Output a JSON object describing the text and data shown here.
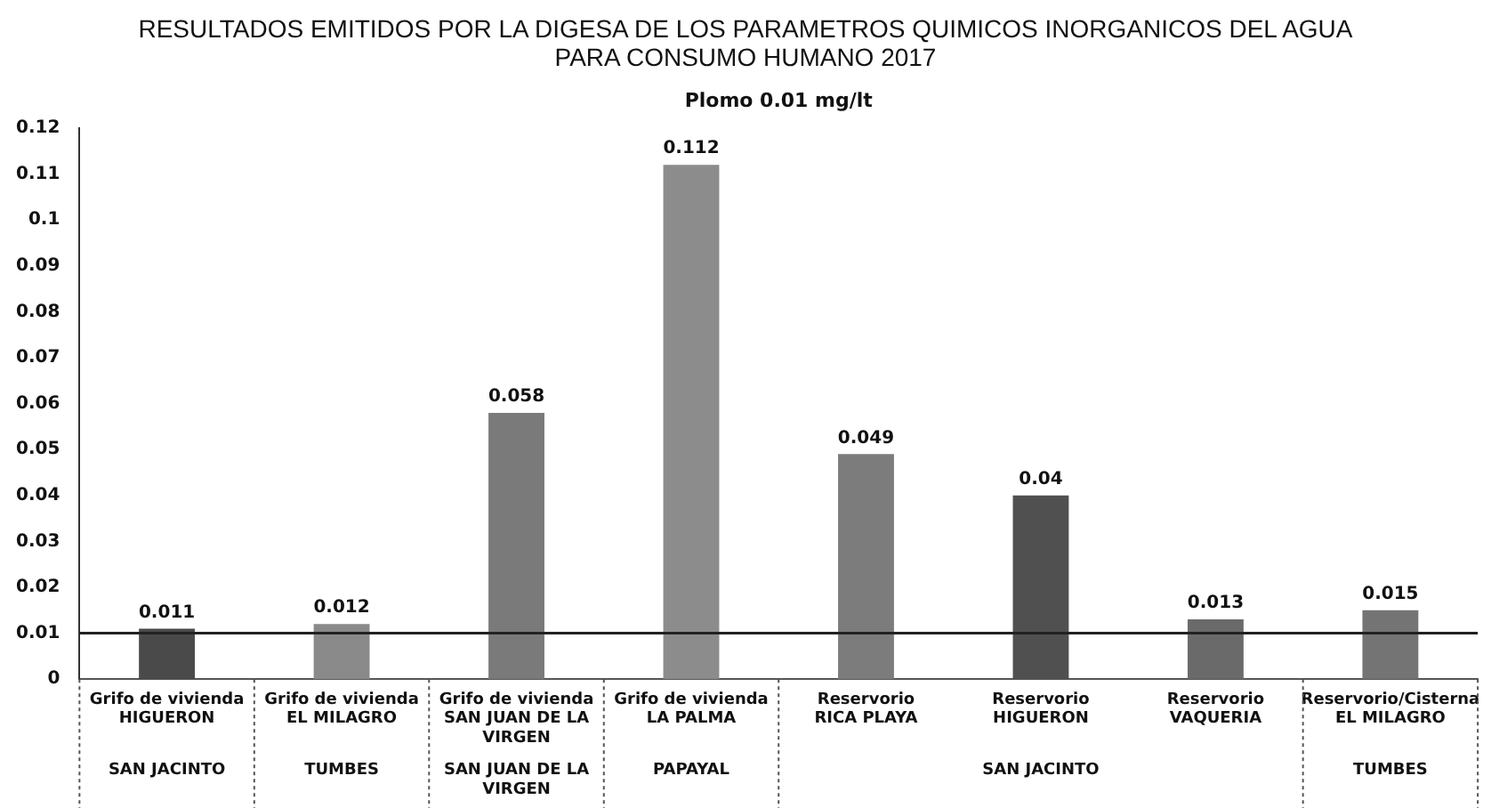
{
  "chart_data": {
    "type": "bar",
    "title": "RESULTADOS EMITIDOS POR LA DIGESA DE LOS PARAMETROS QUIMICOS INORGANICOS DEL AGUA PARA CONSUMO HUMANO 2017",
    "subtitle": "Plomo 0.01 mg/lt",
    "categories": [
      "Grifo de vivienda\nHIGUERON",
      "Grifo de vivienda\nEL MILAGRO",
      "Grifo de vivienda\nSAN JUAN DE LA VIRGEN",
      "Grifo de vivienda\nLA PALMA",
      "Reservorio\nRICA PLAYA",
      "Reservorio\nHIGUERON",
      "Reservorio\nVAQUERIA",
      "Reservorio/Cisterna\nEL MILAGRO"
    ],
    "values": [
      0.011,
      0.012,
      0.058,
      0.112,
      0.049,
      0.04,
      0.013,
      0.015
    ],
    "colors": [
      "#4a4a4a",
      "#8a8a8a",
      "#7a7a7a",
      "#8c8c8c",
      "#7c7c7c",
      "#505050",
      "#6a6a6a",
      "#747474"
    ],
    "ylim": [
      0,
      0.12
    ],
    "yticks": [
      0,
      0.01,
      0.02,
      0.03,
      0.04,
      0.05,
      0.06,
      0.07,
      0.08,
      0.09,
      0.1,
      0.11,
      0.12
    ],
    "ref_lines": [
      {
        "axis": "y",
        "value": 0.01,
        "color": "#222222"
      }
    ],
    "annotations": [
      "SAN JACINTO",
      "TUMBES",
      "SAN JUAN DE LA VIRGEN",
      "PAPAYAL",
      "SAN JACINTO",
      "TUMBES"
    ],
    "data_labels": true,
    "grid": false,
    "legend": false
  }
}
